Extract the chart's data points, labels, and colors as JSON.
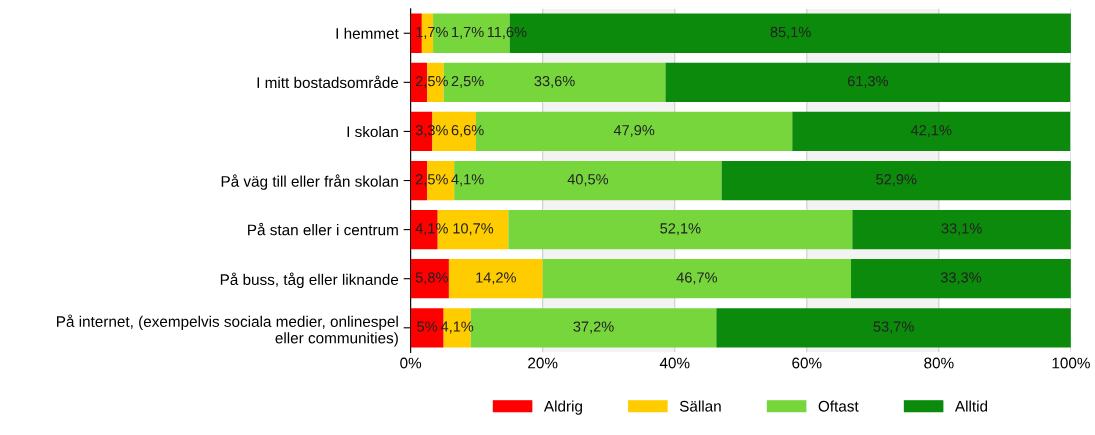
{
  "chart_data": {
    "type": "bar",
    "orientation": "horizontal",
    "stacked": true,
    "categories": [
      "I hemmet",
      "I mitt bostadsområde",
      "I skolan",
      "På väg till eller från skolan",
      "På stan eller i centrum",
      "På buss, tåg eller liknande",
      "På internet, (exempelvis sociala medier, onlinespel\neller communities)"
    ],
    "series": [
      {
        "name": "Aldrig",
        "color": "#ff0000",
        "values": [
          1.7,
          2.5,
          3.3,
          2.5,
          4.1,
          5.8,
          5
        ],
        "value_labels": [
          "1,7%",
          "2,5%",
          "3,3%",
          "2,5%",
          "4,1%",
          "5,8%",
          "5%"
        ]
      },
      {
        "name": "Sällan",
        "color": "#ffcc00",
        "values": [
          1.7,
          2.5,
          6.6,
          4.1,
          10.7,
          14.2,
          4.1
        ],
        "value_labels": [
          "1,7%",
          "2,5%",
          "6,6%",
          "4,1%",
          "10,7%",
          "14,2%",
          "4,1%"
        ]
      },
      {
        "name": "Oftast",
        "color": "#77d63c",
        "values": [
          11.6,
          33.6,
          47.9,
          40.5,
          52.1,
          46.7,
          37.2
        ],
        "value_labels": [
          "11,6%",
          "33,6%",
          "47,9%",
          "40,5%",
          "52,1%",
          "46,7%",
          "37,2%"
        ]
      },
      {
        "name": "Alltid",
        "color": "#0b8a0b",
        "values": [
          85.1,
          61.3,
          42.1,
          52.9,
          33.1,
          33.3,
          53.7
        ],
        "value_labels": [
          "85,1%",
          "61,3%",
          "42,1%",
          "52,9%",
          "33,1%",
          "33,3%",
          "53,7%"
        ]
      }
    ],
    "xlim": [
      0,
      100
    ],
    "xticks": [
      {
        "value": 0,
        "label": "0%"
      },
      {
        "value": 20,
        "label": "20%"
      },
      {
        "value": 40,
        "label": "40%"
      },
      {
        "value": 60,
        "label": "60%"
      },
      {
        "value": 80,
        "label": "80%"
      },
      {
        "value": 100,
        "label": "100%"
      }
    ],
    "bands": [
      {
        "axis": "x",
        "from": 20,
        "to": 40,
        "color": "#f3f3f3"
      },
      {
        "axis": "x",
        "from": 60,
        "to": 80,
        "color": "#f3f3f3"
      }
    ],
    "grid": "x",
    "legend": "bottom"
  }
}
